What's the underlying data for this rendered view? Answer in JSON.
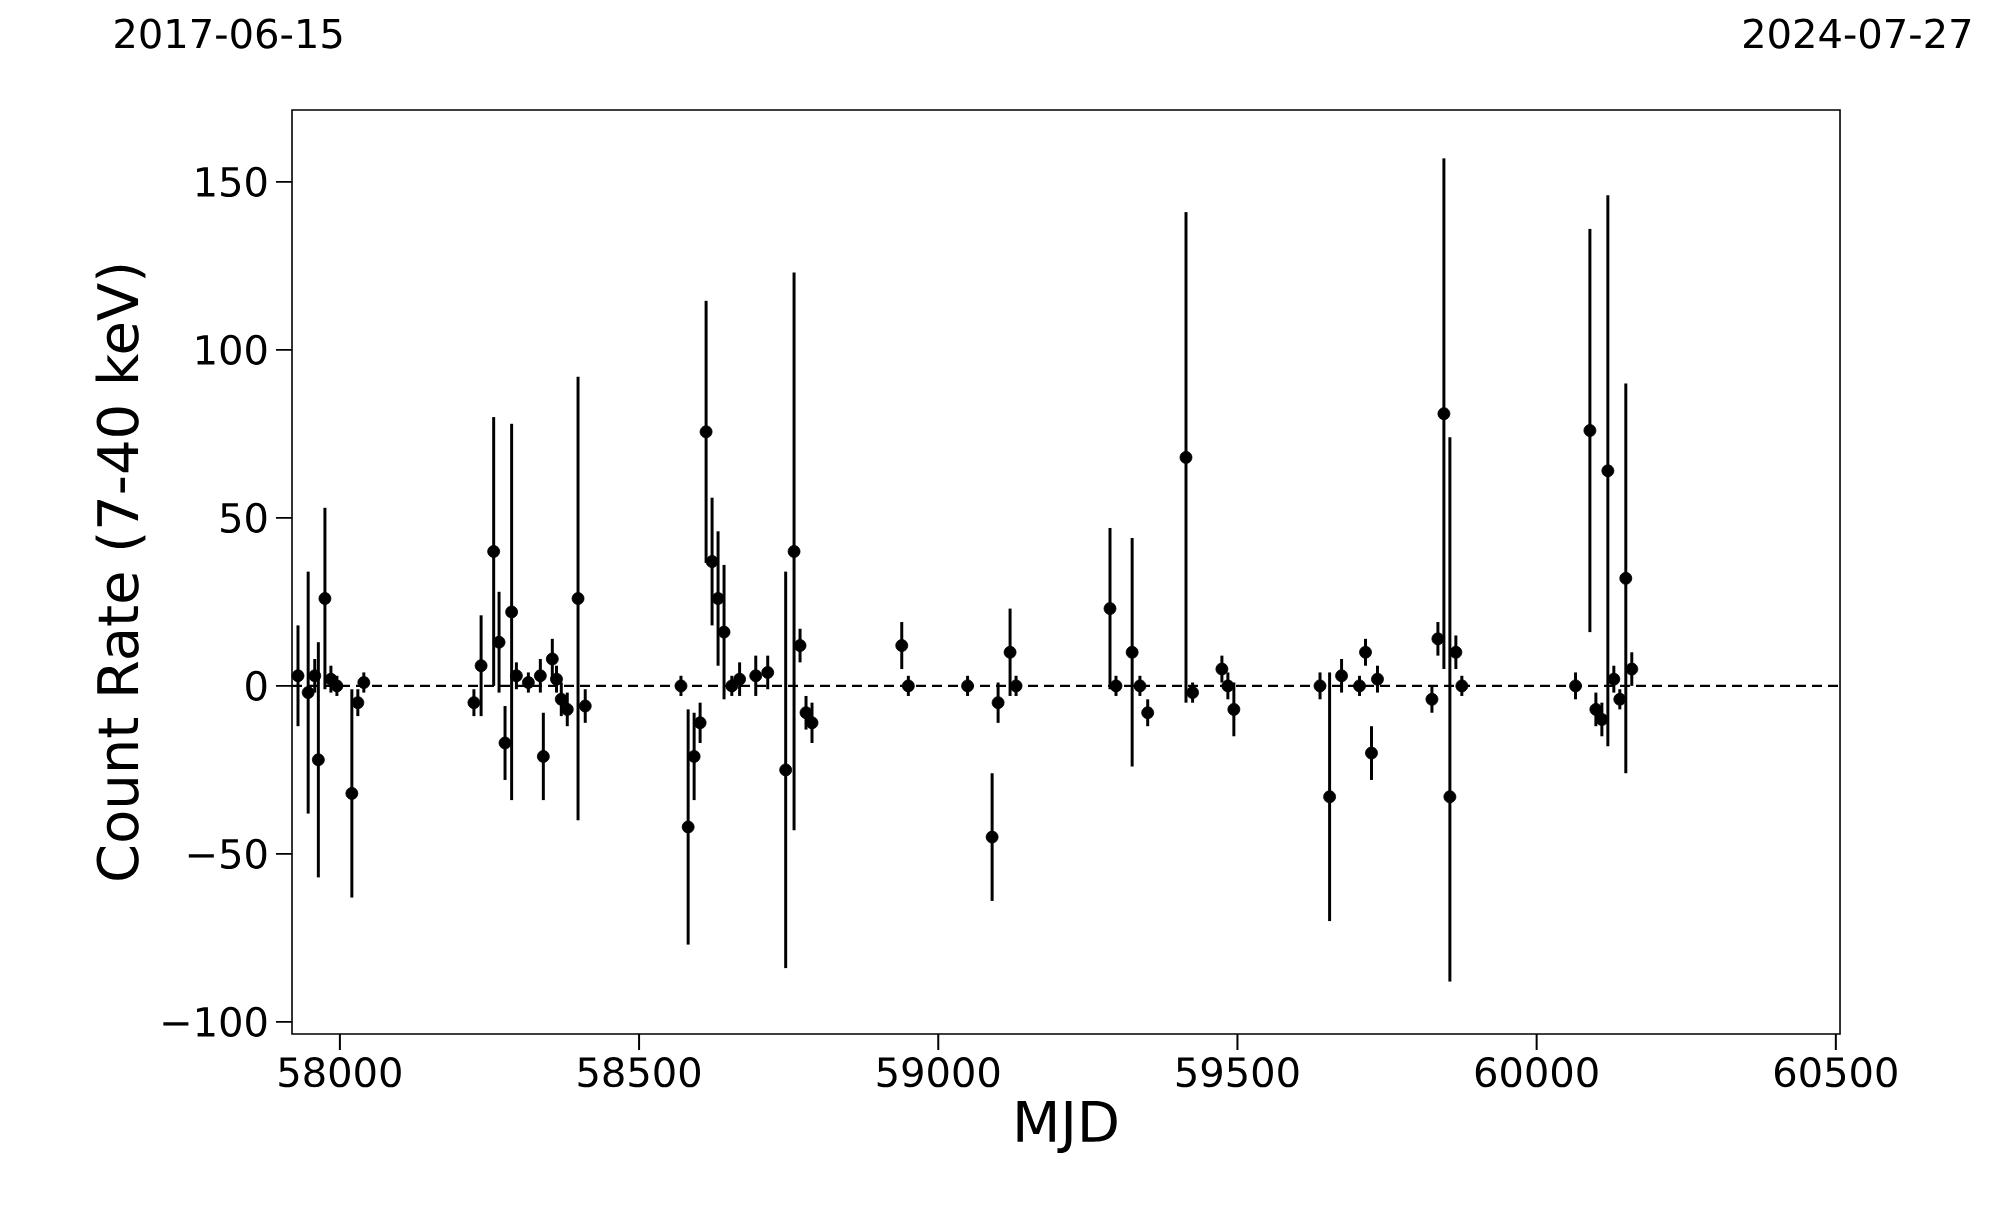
{
  "chart_data": {
    "type": "scatter",
    "xlabel": "MJD",
    "ylabel": "Count Rate (7-40 keV)",
    "annotations": [
      "2017-06-15",
      "2024-07-27"
    ],
    "xlim": [
      57920,
      60507
    ],
    "ylim": [
      -103.6,
      171.4
    ],
    "xticks": [
      58000,
      58500,
      59000,
      59500,
      60000,
      60500
    ],
    "yticks": [
      {
        "value": -100,
        "label": "−100"
      },
      {
        "value": -50,
        "label": "−50"
      },
      0,
      50,
      100,
      150
    ],
    "marker": "circle",
    "color": "#000000",
    "ref_lines": [
      {
        "axis": "y",
        "value": 0,
        "line_style": "dashed",
        "color": "#000000"
      }
    ],
    "x": [
      57930,
      57947,
      57958,
      57964,
      57975,
      57985,
      57995,
      58020,
      58030,
      58040,
      58224,
      58236,
      58257,
      58266,
      58276,
      58287,
      58295,
      58315,
      58335,
      58340,
      58355,
      58362,
      58370,
      58380,
      58398,
      58410,
      58570,
      58582,
      58592,
      58602,
      58612,
      58622,
      58632,
      58642,
      58655,
      58668,
      58695,
      58715,
      58745,
      58759,
      58769,
      58779,
      58789,
      58939,
      58950,
      59049,
      59090,
      59100,
      59120,
      59130,
      59287,
      59297,
      59324,
      59337,
      59350,
      59414,
      59425,
      59474,
      59484,
      59494,
      59638,
      59654,
      59674,
      59704,
      59714,
      59724,
      59734,
      59825,
      59835,
      59845,
      59855,
      59865,
      59875,
      60065,
      60089,
      60099,
      60109,
      60119,
      60129,
      60139,
      60149,
      60159
    ],
    "values": [
      3,
      -2,
      3,
      -22,
      26,
      2,
      0,
      -32,
      -5,
      1,
      -5,
      6,
      40,
      13,
      -17,
      22,
      3,
      1,
      3,
      -21,
      8,
      2,
      -4,
      -7,
      26,
      -6,
      0,
      -42,
      -21,
      -11,
      75.6,
      37,
      26,
      16,
      0,
      2,
      3,
      4,
      -25,
      40,
      12,
      -8,
      -11,
      12,
      0,
      0,
      -45,
      -5,
      10,
      0,
      23,
      0,
      10,
      0,
      -8,
      68,
      -2,
      5,
      0,
      -7,
      0,
      -33,
      3,
      0,
      10,
      -20,
      2,
      -4,
      14,
      81,
      -33,
      10,
      0,
      0,
      76,
      -7,
      -10,
      64,
      2,
      -4,
      32,
      5
    ],
    "errors": [
      15,
      36,
      5,
      35,
      27,
      4,
      3,
      31,
      4,
      3,
      4,
      15,
      40,
      15,
      11,
      56,
      4,
      3,
      5,
      13,
      6,
      4,
      5,
      5,
      66,
      5,
      3,
      35,
      13,
      6,
      39,
      19,
      20,
      20,
      3,
      5,
      6,
      5,
      59,
      83,
      5,
      5,
      6,
      7,
      3,
      3,
      19,
      6,
      13,
      3,
      24,
      3,
      34,
      3,
      4,
      73,
      3,
      4,
      4,
      8,
      4,
      37,
      5,
      3,
      4,
      8,
      4,
      4,
      5,
      76,
      [
        -88,
        74
      ],
      5,
      3,
      4,
      60,
      5,
      5,
      82,
      4,
      3,
      58,
      5
    ]
  }
}
